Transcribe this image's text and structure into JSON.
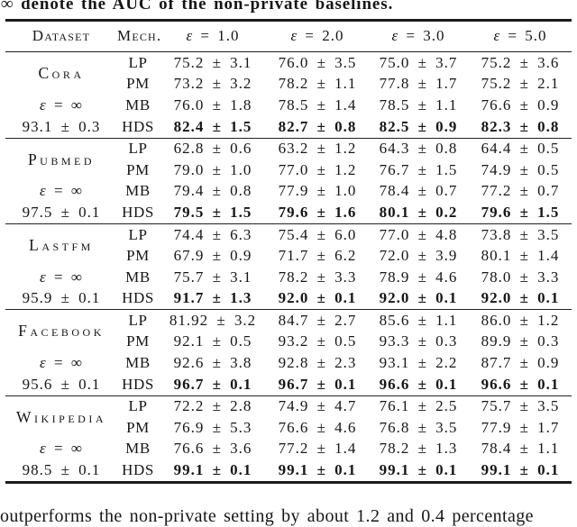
{
  "caption_top": "∞ denote the AUC of the non-private baselines.",
  "caption_bottom": "outperforms the non-private setting by about 1.2 and 0.4 percentage",
  "table": {
    "headers": [
      "Dataset",
      "Mech.",
      "ε = 1.0",
      "ε = 2.0",
      "ε = 3.0",
      "ε = 5.0"
    ],
    "groups": [
      {
        "dataset": "Cora",
        "eps_label": "ε = ∞",
        "eps_value": "93.1 ± 0.3",
        "rows": [
          {
            "mech": "LP",
            "bold": false,
            "values": [
              "75.2 ± 3.1",
              "76.0 ± 3.5",
              "75.0 ± 3.7",
              "75.2 ± 3.6"
            ]
          },
          {
            "mech": "PM",
            "bold": false,
            "values": [
              "73.2 ± 3.2",
              "78.2 ± 1.1",
              "77.8 ± 1.7",
              "75.2 ± 2.1"
            ]
          },
          {
            "mech": "MB",
            "bold": false,
            "values": [
              "76.0 ± 1.8",
              "78.5 ± 1.4",
              "78.5 ± 1.1",
              "76.6 ± 0.9"
            ]
          },
          {
            "mech": "HDS",
            "bold": true,
            "values": [
              "82.4 ± 1.5",
              "82.7 ± 0.8",
              "82.5 ± 0.9",
              "82.3 ± 0.8"
            ]
          }
        ]
      },
      {
        "dataset": "Pubmed",
        "eps_label": "ε = ∞",
        "eps_value": "97.5 ± 0.1",
        "rows": [
          {
            "mech": "LP",
            "bold": false,
            "values": [
              "62.8 ± 0.6",
              "63.2 ± 1.2",
              "64.3 ± 0.8",
              "64.4 ± 0.5"
            ]
          },
          {
            "mech": "PM",
            "bold": false,
            "values": [
              "79.0 ± 1.0",
              "77.0 ± 1.2",
              "76.7 ± 1.5",
              "74.9 ± 0.5"
            ]
          },
          {
            "mech": "MB",
            "bold": false,
            "values": [
              "79.4 ± 0.8",
              "77.9 ± 1.0",
              "78.4 ± 0.7",
              "77.2 ± 0.7"
            ]
          },
          {
            "mech": "HDS",
            "bold": true,
            "values": [
              "79.5 ± 1.5",
              "79.6 ± 1.6",
              "80.1 ± 0.2",
              "79.6 ± 1.5"
            ]
          }
        ]
      },
      {
        "dataset": "Lastfm",
        "eps_label": "ε = ∞",
        "eps_value": "95.9 ± 0.1",
        "rows": [
          {
            "mech": "LP",
            "bold": false,
            "values": [
              "74.4 ± 6.3",
              "75.4 ± 6.0",
              "77.0 ± 4.8",
              "73.8 ± 3.5"
            ]
          },
          {
            "mech": "PM",
            "bold": false,
            "values": [
              "67.9 ± 0.9",
              "71.7 ± 6.2",
              "72.0 ± 3.9",
              "80.1 ± 1.4"
            ]
          },
          {
            "mech": "MB",
            "bold": false,
            "values": [
              "75.7 ± 3.1",
              "78.2 ± 3.3",
              "78.9 ± 4.6",
              "78.0 ± 3.3"
            ]
          },
          {
            "mech": "HDS",
            "bold": true,
            "values": [
              "91.7 ± 1.3",
              "92.0 ± 0.1",
              "92.0 ± 0.1",
              "92.0 ± 0.1"
            ]
          }
        ]
      },
      {
        "dataset": "Facebook",
        "eps_label": "ε = ∞",
        "eps_value": "95.6 ± 0.1",
        "rows": [
          {
            "mech": "LP",
            "bold": false,
            "values": [
              "81.92 ± 3.2",
              "84.7 ± 2.7",
              "85.6 ± 1.1",
              "86.0 ± 1.2"
            ]
          },
          {
            "mech": "PM",
            "bold": false,
            "values": [
              "92.1 ± 0.5",
              "93.2 ± 0.5",
              "93.3 ± 0.3",
              "89.9 ± 0.3"
            ]
          },
          {
            "mech": "MB",
            "bold": false,
            "values": [
              "92.6 ± 3.8",
              "92.8 ± 2.3",
              "93.1 ± 2.2",
              "87.7 ± 0.9"
            ]
          },
          {
            "mech": "HDS",
            "bold": true,
            "values": [
              "96.7 ± 0.1",
              "96.7 ± 0.1",
              "96.6 ± 0.1",
              "96.6 ± 0.1"
            ]
          }
        ]
      },
      {
        "dataset": "Wikipedia",
        "eps_label": "ε = ∞",
        "eps_value": "98.5 ± 0.1",
        "rows": [
          {
            "mech": "LP",
            "bold": false,
            "values": [
              "72.2 ± 2.8",
              "74.9 ± 4.7",
              "76.1 ± 2.5",
              "75.7 ± 3.5"
            ]
          },
          {
            "mech": "PM",
            "bold": false,
            "values": [
              "76.9 ± 5.3",
              "76.6 ± 4.6",
              "76.8 ± 3.5",
              "77.9 ± 1.7"
            ]
          },
          {
            "mech": "MB",
            "bold": false,
            "values": [
              "76.6 ± 3.6",
              "77.2 ± 1.4",
              "78.2 ± 1.3",
              "78.4 ± 1.1"
            ]
          },
          {
            "mech": "HDS",
            "bold": true,
            "values": [
              "99.1 ± 0.1",
              "99.1 ± 0.1",
              "99.1 ± 0.1",
              "99.1 ± 0.1"
            ]
          }
        ]
      }
    ]
  }
}
